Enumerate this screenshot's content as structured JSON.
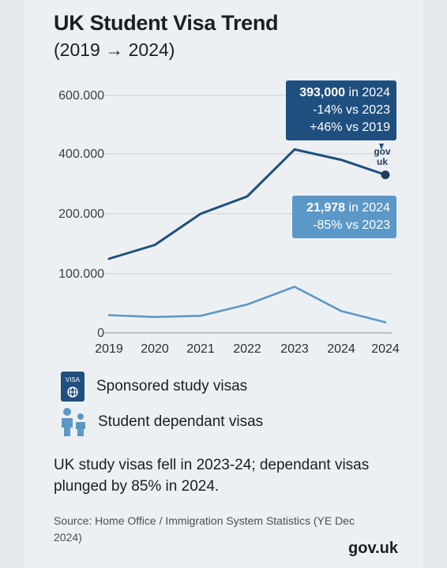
{
  "header": {
    "title": "UK Student Visa Trend",
    "subtitle": "(2019 → 2024)"
  },
  "chart_data": {
    "type": "line",
    "x": [
      "2019",
      "2020",
      "2021",
      "2022",
      "2023",
      "2024",
      "2024"
    ],
    "y_ticks": [
      {
        "value": 0,
        "label": "0"
      },
      {
        "value": 100000,
        "label": "100.000"
      },
      {
        "value": 200000,
        "label": "200.000"
      },
      {
        "value": 400000,
        "label": "400.000"
      },
      {
        "value": 600000,
        "label": "600.000"
      }
    ],
    "series": [
      {
        "name": "Sponsored study visas",
        "color": "#1f4f7e",
        "values": [
          125000,
          148000,
          200000,
          258000,
          415000,
          380000,
          330000
        ]
      },
      {
        "name": "Student dependant visas",
        "color": "#5c98c7",
        "values": [
          30000,
          27000,
          29000,
          48000,
          78000,
          37000,
          18000
        ]
      }
    ],
    "grid": true,
    "legend": "bottom"
  },
  "callouts": {
    "main": {
      "value": "393,000",
      "suffix": " in 2024",
      "line2": "-14% vs 2023",
      "line3": "+46% vs 2019"
    },
    "dependant": {
      "value": "21,978",
      "suffix": " in 2024",
      "line2": "-85% vs 2023"
    },
    "marker_label": {
      "line1": "gov",
      "line2": "uk"
    }
  },
  "legend": {
    "items": [
      {
        "label": "Sponsored study visas",
        "icon": "passport-icon",
        "icon_text": "VISA"
      },
      {
        "label": "Student dependant visas",
        "icon": "family-icon"
      }
    ]
  },
  "note": "UK study visas fell in 2023-24; dependant visas plunged by 85% in 2024.",
  "source": "Source: Home Office / Immigration System Statistics (YE Dec 2024)",
  "brand": "gov.uk"
}
